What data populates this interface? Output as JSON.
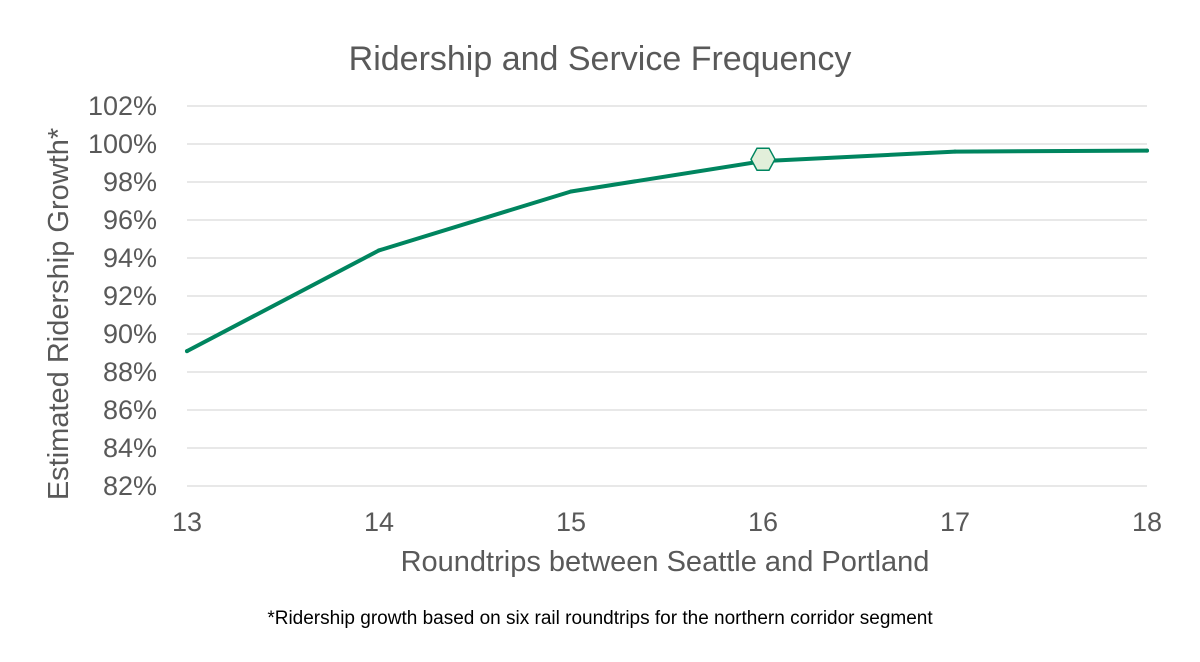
{
  "chart_data": {
    "type": "line",
    "title": "Ridership and Service Frequency",
    "xlabel": "Roundtrips between Seattle and Portland",
    "ylabel": "Estimated Ridership Growth*",
    "x": [
      13,
      14,
      15,
      16,
      17,
      18
    ],
    "x_ticks": [
      "13",
      "14",
      "15",
      "16",
      "17",
      "18"
    ],
    "xlim": [
      13,
      18
    ],
    "ylim": [
      82,
      102
    ],
    "y_ticks": [
      82,
      84,
      86,
      88,
      90,
      92,
      94,
      96,
      98,
      100,
      102
    ],
    "y_tick_labels": [
      "82%",
      "84%",
      "86%",
      "88%",
      "90%",
      "92%",
      "94%",
      "96%",
      "98%",
      "100%",
      "102%"
    ],
    "grid": true,
    "series": [
      {
        "name": "Estimated Ridership Growth",
        "values": [
          89.1,
          94.4,
          97.5,
          99.1,
          99.6,
          99.65
        ],
        "color": "#00855F"
      }
    ],
    "highlight": {
      "x": 16,
      "y": 99.2,
      "shape": "hexagon",
      "fill": "#E2EFDA",
      "stroke": "#00855F"
    },
    "footnote": "*Ridership growth based on six rail roundtrips for the northern corridor segment"
  }
}
